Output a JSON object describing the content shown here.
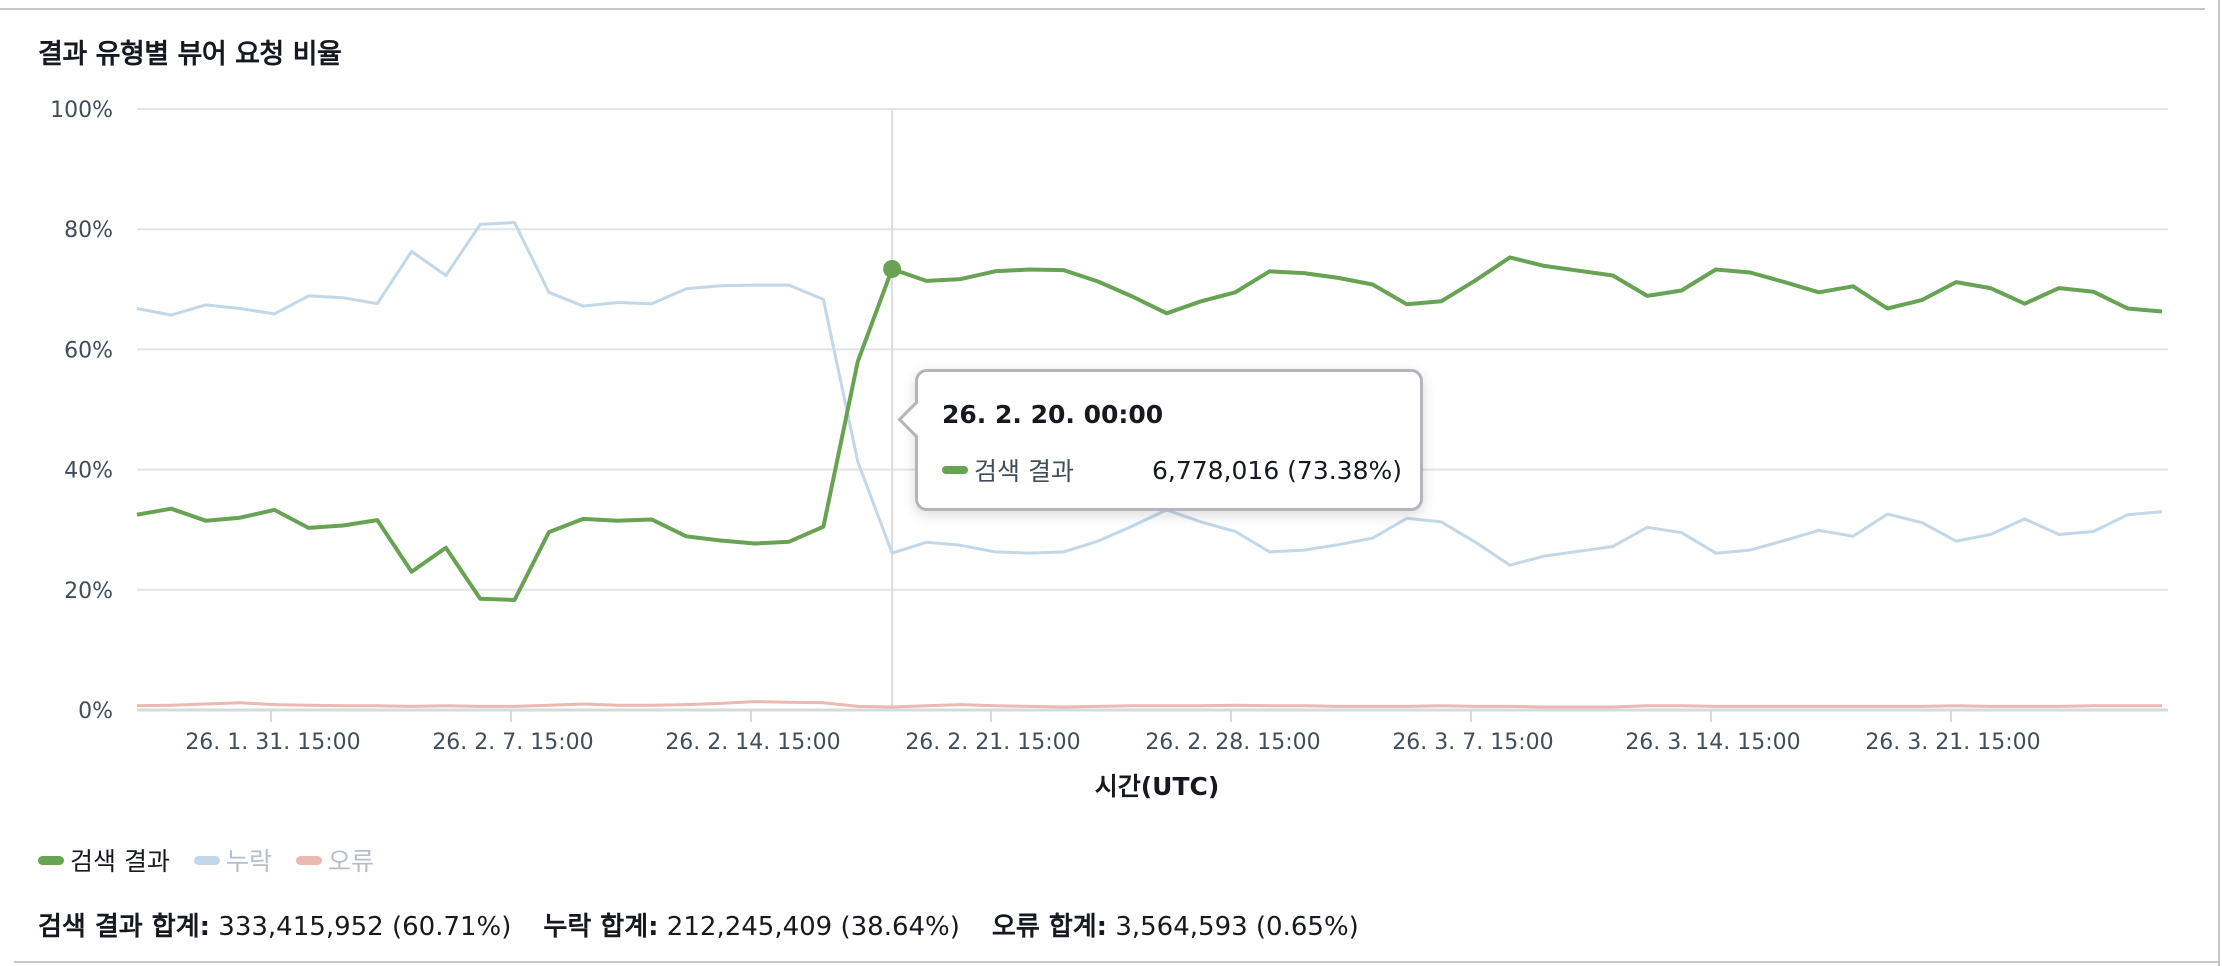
{
  "title": "결과 유형별 뷰어 요청 비율",
  "colors": {
    "search": "#67a353",
    "missing": "#c2d8e9",
    "error": "#eab9b1",
    "grid": "#e2e4e7",
    "crosshair": "#dcdcdf"
  },
  "tooltip": {
    "title": "26. 2. 20. 00:00",
    "series_label": "검색 결과",
    "value": "6,778,016 (73.38%)"
  },
  "legend": [
    {
      "label": "검색 결과",
      "color": "#67a353",
      "active": true
    },
    {
      "label": "누락",
      "color": "#c2d8e9",
      "active": false
    },
    {
      "label": "오류",
      "color": "#eab9b1",
      "active": false
    }
  ],
  "totals": [
    {
      "key": "검색 결과 합계:",
      "value": " 333,415,952 (60.71%)"
    },
    {
      "key": "누락 합계:",
      "value": " 212,245,409 (38.64%)"
    },
    {
      "key": "오류 합계:",
      "value": " 3,564,593 (0.65%)"
    }
  ],
  "chart_data": {
    "type": "line",
    "title": "결과 유형별 뷰어 요청 비율",
    "xlabel": "시간(UTC)",
    "ylabel": "",
    "ylim": [
      0,
      100
    ],
    "y_ticks": [
      "0%",
      "20%",
      "40%",
      "60%",
      "80%",
      "100%"
    ],
    "x_tick_labels": [
      "26. 1. 31. 15:00",
      "26. 2. 7. 15:00",
      "26. 2. 14. 15:00",
      "26. 2. 21. 15:00",
      "26. 2. 28. 15:00",
      "26. 3. 7. 15:00",
      "26. 3. 14. 15:00",
      "26. 3. 21. 15:00"
    ],
    "grid": true,
    "legend_position": "bottom-left",
    "highlight": {
      "series": "검색 결과",
      "index": 22,
      "x": "26. 2. 20. 00:00",
      "value": 73.38,
      "count": "6,778,016"
    },
    "series": [
      {
        "name": "검색 결과",
        "color": "#67a353",
        "values": [
          32.5,
          33.5,
          31.5,
          32,
          33.3,
          30.3,
          30.7,
          31.6,
          23,
          27,
          18.5,
          18.3,
          29.6,
          31.8,
          31.5,
          31.7,
          28.9,
          28.2,
          27.7,
          28,
          30.5,
          58,
          73.38,
          71.4,
          71.7,
          73,
          73.3,
          73.2,
          71.3,
          68.8,
          66,
          68,
          69.5,
          73,
          72.7,
          71.9,
          70.8,
          67.5,
          68,
          71.5,
          75.3,
          73.9,
          73.1,
          72.3,
          68.9,
          69.8,
          73.3,
          72.8,
          71.2,
          69.5,
          70.5,
          66.8,
          68.2,
          71.2,
          70.2,
          67.6,
          70.2,
          69.6,
          66.8,
          66.3
        ]
      },
      {
        "name": "누락",
        "color": "#c2d8e9",
        "values": [
          66.8,
          65.7,
          67.4,
          66.8,
          65.9,
          68.9,
          68.6,
          67.6,
          76.3,
          72.3,
          80.8,
          81.1,
          69.5,
          67.2,
          67.8,
          67.6,
          70.1,
          70.6,
          70.7,
          70.7,
          68.3,
          41.3,
          26.1,
          27.9,
          27.4,
          26.3,
          26.1,
          26.3,
          28.1,
          30.6,
          33.3,
          31.3,
          29.7,
          26.3,
          26.6,
          27.5,
          28.6,
          31.9,
          31.3,
          27.9,
          24.1,
          25.6,
          26.4,
          27.2,
          30.4,
          29.5,
          26.1,
          26.6,
          28.2,
          29.9,
          28.9,
          32.6,
          31.2,
          28.1,
          29.2,
          31.8,
          29.2,
          29.7,
          32.5,
          33.0
        ]
      },
      {
        "name": "오류",
        "color": "#eab9b1",
        "values": [
          0.7,
          0.8,
          1.0,
          1.2,
          0.9,
          0.8,
          0.7,
          0.7,
          0.6,
          0.7,
          0.6,
          0.6,
          0.8,
          1.0,
          0.8,
          0.8,
          0.9,
          1.1,
          1.4,
          1.3,
          1.2,
          0.6,
          0.5,
          0.7,
          0.9,
          0.7,
          0.6,
          0.5,
          0.6,
          0.7,
          0.7,
          0.7,
          0.8,
          0.7,
          0.7,
          0.6,
          0.6,
          0.6,
          0.7,
          0.6,
          0.6,
          0.5,
          0.5,
          0.5,
          0.7,
          0.7,
          0.6,
          0.6,
          0.6,
          0.6,
          0.6,
          0.6,
          0.6,
          0.7,
          0.6,
          0.6,
          0.6,
          0.7,
          0.7,
          0.7
        ]
      }
    ]
  }
}
